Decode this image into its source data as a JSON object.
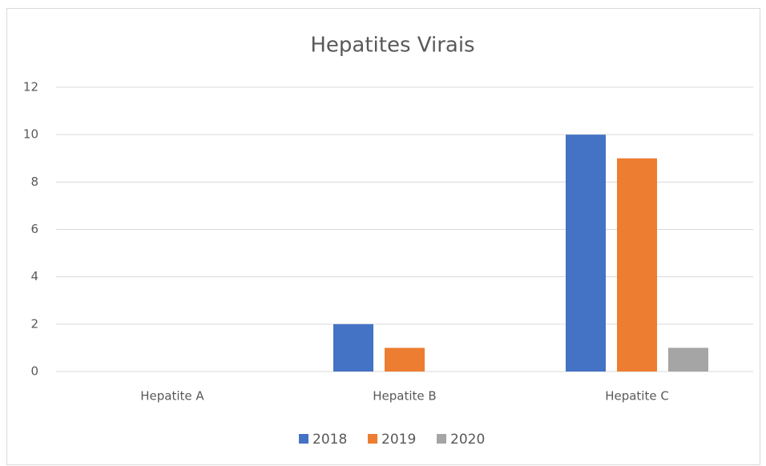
{
  "chart_data": {
    "type": "bar",
    "title": "Hepatites Virais",
    "categories": [
      "Hepatite A",
      "Hepatite B",
      "Hepatite C"
    ],
    "series": [
      {
        "name": "2018",
        "color": "#4472c4",
        "values": [
          0,
          2,
          10
        ]
      },
      {
        "name": "2019",
        "color": "#ed7d31",
        "values": [
          0,
          1,
          9
        ]
      },
      {
        "name": "2020",
        "color": "#a5a5a5",
        "values": [
          0,
          0,
          1
        ]
      }
    ],
    "ylim": [
      0,
      12
    ],
    "yticks": [
      0,
      2,
      4,
      6,
      8,
      10,
      12
    ],
    "grid": true,
    "legend": "bottom"
  }
}
